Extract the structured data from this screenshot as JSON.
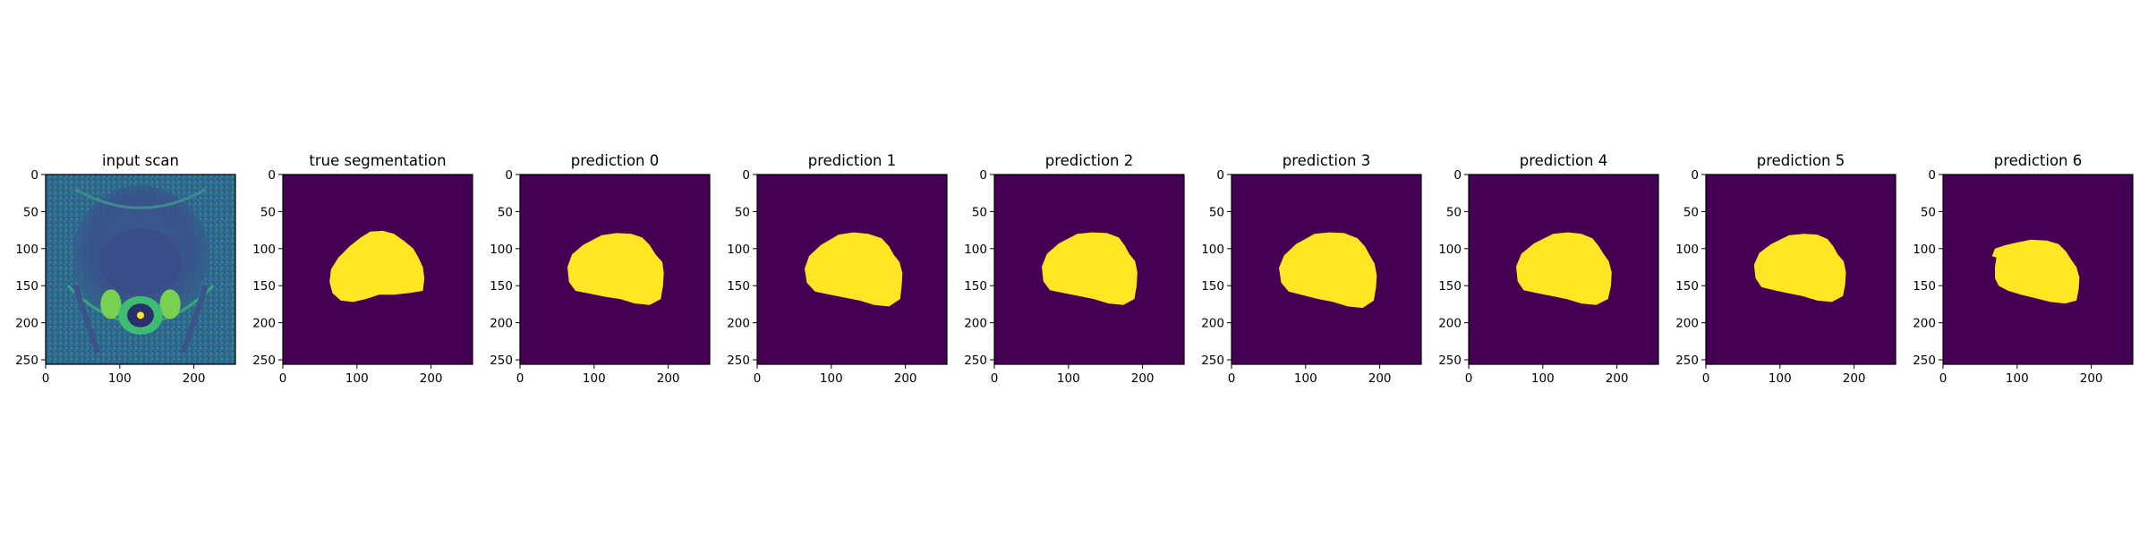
{
  "chart_data": [
    {
      "type": "heatmap",
      "title": "input scan",
      "content": "grayscale scan (viridis colormap)",
      "xlim": [
        0,
        256
      ],
      "ylim": [
        256,
        0
      ],
      "xticks": [
        0,
        100,
        200
      ],
      "yticks": [
        0,
        50,
        100,
        150,
        200,
        250
      ]
    },
    {
      "type": "heatmap",
      "title": "true segmentation",
      "content": "binary mask",
      "xlim": [
        0,
        256
      ],
      "ylim": [
        256,
        0
      ],
      "xticks": [
        0,
        100,
        200
      ],
      "yticks": [
        0,
        50,
        100,
        150,
        200,
        250
      ],
      "mask_outline": [
        [
          118,
          77
        ],
        [
          135,
          76
        ],
        [
          150,
          80
        ],
        [
          164,
          90
        ],
        [
          176,
          100
        ],
        [
          183,
          112
        ],
        [
          189,
          125
        ],
        [
          191,
          140
        ],
        [
          189,
          157
        ],
        [
          170,
          160
        ],
        [
          150,
          162
        ],
        [
          130,
          162
        ],
        [
          112,
          168
        ],
        [
          95,
          172
        ],
        [
          78,
          170
        ],
        [
          67,
          160
        ],
        [
          63,
          145
        ],
        [
          65,
          128
        ],
        [
          75,
          112
        ],
        [
          90,
          97
        ],
        [
          105,
          85
        ]
      ]
    },
    {
      "type": "heatmap",
      "title": "prediction 0",
      "content": "binary mask",
      "xlim": [
        0,
        256
      ],
      "ylim": [
        256,
        0
      ],
      "xticks": [
        0,
        100,
        200
      ],
      "yticks": [
        0,
        50,
        100,
        150,
        200,
        250
      ],
      "mask_outline": [
        [
          110,
          82
        ],
        [
          130,
          79
        ],
        [
          150,
          80
        ],
        [
          165,
          85
        ],
        [
          175,
          95
        ],
        [
          183,
          108
        ],
        [
          192,
          118
        ],
        [
          194,
          133
        ],
        [
          193,
          150
        ],
        [
          190,
          168
        ],
        [
          175,
          176
        ],
        [
          155,
          174
        ],
        [
          135,
          168
        ],
        [
          115,
          165
        ],
        [
          95,
          161
        ],
        [
          75,
          157
        ],
        [
          66,
          145
        ],
        [
          64,
          125
        ],
        [
          70,
          108
        ],
        [
          85,
          95
        ]
      ]
    },
    {
      "type": "heatmap",
      "title": "prediction 1",
      "content": "binary mask",
      "xlim": [
        0,
        256
      ],
      "ylim": [
        256,
        0
      ],
      "xticks": [
        0,
        100,
        200
      ],
      "yticks": [
        0,
        50,
        100,
        150,
        200,
        250
      ],
      "mask_outline": [
        [
          110,
          81
        ],
        [
          130,
          78
        ],
        [
          150,
          80
        ],
        [
          168,
          86
        ],
        [
          178,
          97
        ],
        [
          184,
          108
        ],
        [
          192,
          118
        ],
        [
          196,
          133
        ],
        [
          195,
          150
        ],
        [
          193,
          168
        ],
        [
          178,
          178
        ],
        [
          158,
          176
        ],
        [
          138,
          170
        ],
        [
          118,
          166
        ],
        [
          98,
          162
        ],
        [
          78,
          158
        ],
        [
          67,
          146
        ],
        [
          64,
          127
        ],
        [
          70,
          110
        ],
        [
          86,
          95
        ]
      ]
    },
    {
      "type": "heatmap",
      "title": "prediction 2",
      "content": "binary mask",
      "xlim": [
        0,
        256
      ],
      "ylim": [
        256,
        0
      ],
      "xticks": [
        0,
        100,
        200
      ],
      "yticks": [
        0,
        50,
        100,
        150,
        200,
        250
      ],
      "mask_outline": [
        [
          112,
          80
        ],
        [
          132,
          78
        ],
        [
          152,
          79
        ],
        [
          168,
          85
        ],
        [
          176,
          96
        ],
        [
          182,
          107
        ],
        [
          190,
          117
        ],
        [
          193,
          132
        ],
        [
          192,
          150
        ],
        [
          189,
          168
        ],
        [
          174,
          176
        ],
        [
          154,
          174
        ],
        [
          134,
          168
        ],
        [
          114,
          164
        ],
        [
          94,
          160
        ],
        [
          75,
          156
        ],
        [
          66,
          144
        ],
        [
          64,
          124
        ],
        [
          71,
          107
        ],
        [
          87,
          93
        ]
      ]
    },
    {
      "type": "heatmap",
      "title": "prediction 3",
      "content": "binary mask",
      "xlim": [
        0,
        256
      ],
      "ylim": [
        256,
        0
      ],
      "xticks": [
        0,
        100,
        200
      ],
      "yticks": [
        0,
        50,
        100,
        150,
        200,
        250
      ],
      "mask_outline": [
        [
          112,
          80
        ],
        [
          132,
          78
        ],
        [
          152,
          79
        ],
        [
          170,
          86
        ],
        [
          180,
          97
        ],
        [
          186,
          108
        ],
        [
          193,
          120
        ],
        [
          196,
          136
        ],
        [
          195,
          152
        ],
        [
          192,
          170
        ],
        [
          177,
          180
        ],
        [
          157,
          178
        ],
        [
          137,
          172
        ],
        [
          117,
          168
        ],
        [
          97,
          163
        ],
        [
          77,
          158
        ],
        [
          67,
          146
        ],
        [
          64,
          126
        ],
        [
          71,
          109
        ],
        [
          87,
          94
        ]
      ]
    },
    {
      "type": "heatmap",
      "title": "prediction 4",
      "content": "binary mask",
      "xlim": [
        0,
        256
      ],
      "ylim": [
        256,
        0
      ],
      "xticks": [
        0,
        100,
        200
      ],
      "yticks": [
        0,
        50,
        100,
        150,
        200,
        250
      ],
      "mask_outline": [
        [
          114,
          80
        ],
        [
          134,
          78
        ],
        [
          152,
          80
        ],
        [
          167,
          86
        ],
        [
          175,
          96
        ],
        [
          182,
          107
        ],
        [
          189,
          117
        ],
        [
          193,
          132
        ],
        [
          192,
          150
        ],
        [
          188,
          168
        ],
        [
          172,
          176
        ],
        [
          152,
          174
        ],
        [
          132,
          168
        ],
        [
          112,
          164
        ],
        [
          92,
          160
        ],
        [
          74,
          156
        ],
        [
          66,
          144
        ],
        [
          64,
          124
        ],
        [
          71,
          107
        ],
        [
          88,
          93
        ]
      ]
    },
    {
      "type": "heatmap",
      "title": "prediction 5",
      "content": "binary mask",
      "xlim": [
        0,
        256
      ],
      "ylim": [
        256,
        0
      ],
      "xticks": [
        0,
        100,
        200
      ],
      "yticks": [
        0,
        50,
        100,
        150,
        200,
        250
      ],
      "mask_outline": [
        [
          112,
          82
        ],
        [
          132,
          80
        ],
        [
          150,
          81
        ],
        [
          164,
          87
        ],
        [
          172,
          97
        ],
        [
          178,
          108
        ],
        [
          186,
          117
        ],
        [
          189,
          132
        ],
        [
          188,
          148
        ],
        [
          185,
          164
        ],
        [
          170,
          172
        ],
        [
          150,
          170
        ],
        [
          130,
          164
        ],
        [
          110,
          160
        ],
        [
          92,
          156
        ],
        [
          75,
          152
        ],
        [
          67,
          140
        ],
        [
          65,
          122
        ],
        [
          72,
          106
        ],
        [
          88,
          94
        ]
      ]
    },
    {
      "type": "heatmap",
      "title": "prediction 6",
      "content": "binary mask",
      "xlim": [
        0,
        256
      ],
      "ylim": [
        256,
        0
      ],
      "xticks": [
        0,
        100,
        200
      ],
      "yticks": [
        0,
        50,
        100,
        150,
        200,
        250
      ],
      "mask_outline": [
        [
          98,
          92
        ],
        [
          118,
          88
        ],
        [
          140,
          89
        ],
        [
          156,
          94
        ],
        [
          166,
          104
        ],
        [
          173,
          115
        ],
        [
          180,
          125
        ],
        [
          184,
          139
        ],
        [
          183,
          155
        ],
        [
          180,
          170
        ],
        [
          165,
          174
        ],
        [
          145,
          172
        ],
        [
          125,
          167
        ],
        [
          105,
          162
        ],
        [
          88,
          157
        ],
        [
          75,
          150
        ],
        [
          70,
          140
        ],
        [
          70,
          125
        ],
        [
          72,
          112
        ],
        [
          66,
          110
        ],
        [
          70,
          100
        ],
        [
          85,
          95
        ]
      ]
    }
  ],
  "colors": {
    "background_low": "#440154",
    "mask_high": "#fde725",
    "scan_dark": "#3e4a89",
    "scan_mid": "#2a788e",
    "scan_bright": "#7ad151",
    "scan_peak": "#fde725"
  }
}
